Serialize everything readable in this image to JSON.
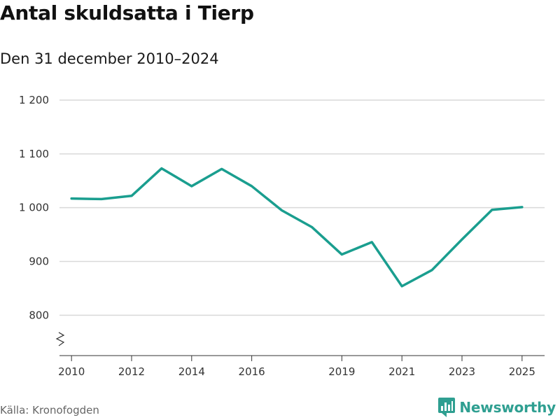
{
  "header": {
    "title": "Antal skuldsatta i Tierp",
    "subtitle": "Den 31 december 2010–2024"
  },
  "footer": {
    "source": "Källa: Kronofogden",
    "brand": "Newsworthy",
    "brand_icon": "bar-chart-logo-icon"
  },
  "colors": {
    "line": "#1a9e8f",
    "grid": "#d9d9d9",
    "axis": "#333333",
    "brand": "#2f9f91"
  },
  "chart_data": {
    "type": "line",
    "title": "Antal skuldsatta i Tierp",
    "subtitle": "Den 31 december 2010–2024",
    "xlabel": "",
    "ylabel": "",
    "x": [
      2010,
      2011,
      2012,
      2013,
      2014,
      2015,
      2016,
      2017,
      2018,
      2019,
      2020,
      2021,
      2022,
      2023,
      2024,
      2025
    ],
    "series": [
      {
        "name": "Antal skuldsatta",
        "values": [
          1017,
          1016,
          1022,
          1073,
          1040,
          1072,
          1040,
          995,
          964,
          913,
          936,
          854,
          884,
          941,
          996,
          1001
        ]
      }
    ],
    "ylim": [
      725,
      1200
    ],
    "xlim": [
      2009.6,
      2025.75
    ],
    "yticks": [
      800,
      900,
      1000,
      1100,
      1200
    ],
    "ytick_labels": [
      "800",
      "900",
      "1 000",
      "1 100",
      "1 200"
    ],
    "xticks": [
      2010,
      2012,
      2014,
      2016,
      2019,
      2021,
      2023,
      2025
    ],
    "xtick_labels": [
      "2010",
      "2012",
      "2014",
      "2016",
      "2019",
      "2021",
      "2023",
      "2025"
    ],
    "grid": true,
    "axis_break": true
  }
}
